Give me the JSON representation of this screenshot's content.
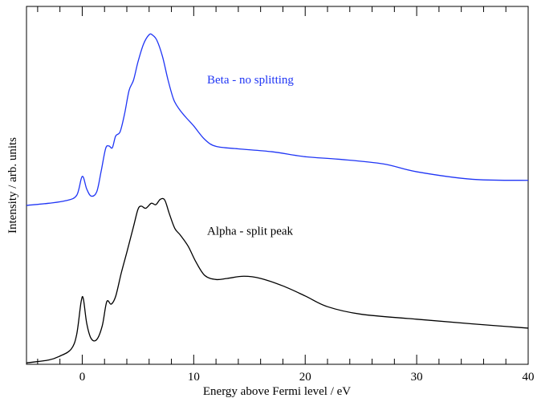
{
  "chart_data": {
    "type": "line",
    "xlabel": "Energy above Fermi level / eV",
    "ylabel": "Intensity / arb. units",
    "xlim": [
      -5,
      40
    ],
    "ylim": [
      0,
      100
    ],
    "xticks": [
      0,
      10,
      20,
      30,
      40
    ],
    "xtick_labels": [
      "0",
      "10",
      "20",
      "30",
      "40"
    ],
    "y_tick_labels": false,
    "grid": false,
    "legend": "none",
    "annotations": [
      {
        "text": "Beta - no splitting",
        "series": "Beta - no splitting",
        "x": 11.2,
        "y": 78.5
      },
      {
        "text": "Alpha - split peak",
        "series": "Alpha - split peak",
        "x": 11.2,
        "y": 36.2
      }
    ],
    "series": [
      {
        "name": "Beta - no splitting",
        "color": "#1f35f5",
        "x": [
          -5,
          -3,
          -1.5,
          -0.5,
          0,
          0.4,
          0.8,
          1.3,
          1.7,
          2.1,
          2.4,
          2.7,
          3.0,
          3.4,
          3.8,
          4.2,
          4.6,
          5.0,
          5.5,
          6.0,
          6.3,
          6.7,
          7.2,
          7.7,
          8.2,
          8.7,
          9.3,
          10,
          11,
          12,
          14,
          17,
          20,
          23,
          27,
          30,
          35,
          40
        ],
        "y": [
          44.4,
          45.0,
          45.7,
          47.2,
          52.5,
          49.0,
          47.0,
          48.2,
          54.0,
          60.3,
          61.0,
          60.5,
          63.8,
          65.0,
          70.0,
          76.5,
          79.4,
          84.5,
          89.5,
          92.1,
          92.0,
          90.5,
          86.0,
          79.4,
          74.0,
          71.3,
          69.0,
          66.6,
          62.8,
          60.9,
          60.2,
          59.4,
          58.0,
          57.3,
          56.0,
          53.8,
          51.7,
          51.4
        ]
      },
      {
        "name": "Alpha - split peak",
        "color": "#000000",
        "x": [
          -5,
          -3,
          -2,
          -1,
          -0.5,
          -0.1,
          0.1,
          0.4,
          0.8,
          1.3,
          1.8,
          2.2,
          2.6,
          3.0,
          3.5,
          4.0,
          4.6,
          5.0,
          5.3,
          5.7,
          6.2,
          6.6,
          7.0,
          7.4,
          7.8,
          8.3,
          8.8,
          9.5,
          10.2,
          11,
          12,
          13,
          14.5,
          16,
          18,
          20,
          22,
          25,
          30,
          35,
          40
        ],
        "y": [
          0.4,
          1.2,
          2.3,
          4.2,
          8.3,
          17.5,
          18.3,
          11.5,
          7.2,
          6.9,
          10.8,
          17.5,
          16.8,
          19.0,
          25.5,
          31.3,
          38.5,
          43.3,
          44.2,
          43.6,
          45.0,
          44.6,
          46.1,
          45.9,
          42.2,
          38.0,
          36.1,
          33.0,
          28.6,
          24.8,
          23.7,
          24.0,
          24.6,
          24.0,
          21.9,
          19.1,
          16.1,
          14.0,
          12.6,
          11.3,
          10.1
        ]
      }
    ]
  }
}
